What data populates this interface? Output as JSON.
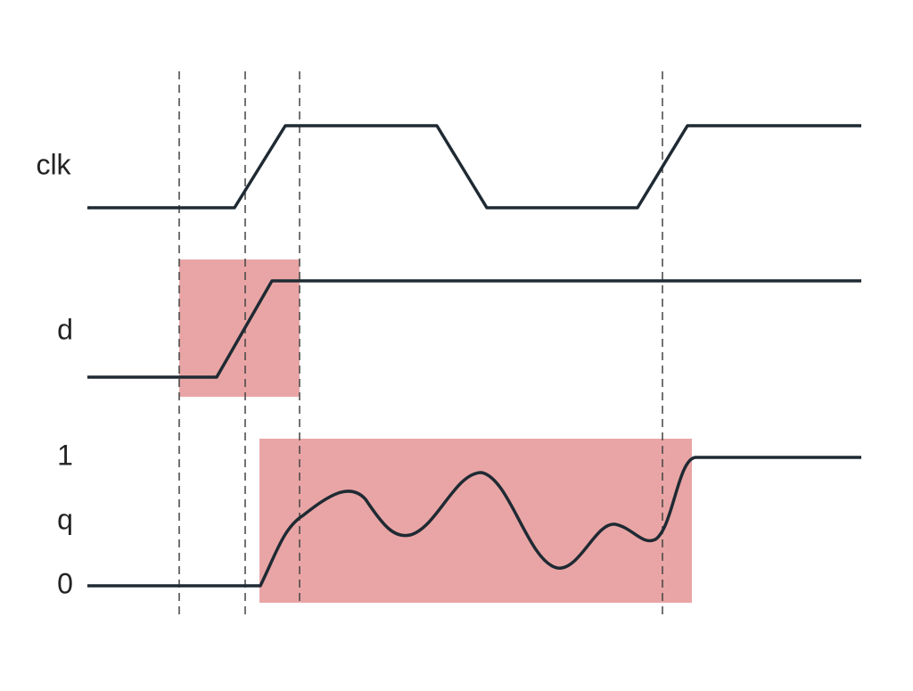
{
  "signals": [
    {
      "label": "clk"
    },
    {
      "label": "d"
    },
    {
      "label": "q",
      "levels": [
        "1",
        "0"
      ]
    }
  ]
}
